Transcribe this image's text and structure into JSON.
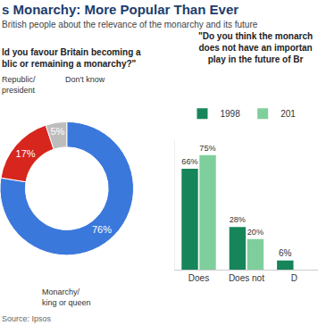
{
  "title": "s Monarchy: More Popular Than Ever",
  "subtitle": "British people about the relevance of the monarchy and its future",
  "source": "Source: Ipsos",
  "chart_data": [
    {
      "type": "pie",
      "title": "ld you favour Britain becoming a\nblic or remaining a monarchy?\"",
      "categories": [
        "Monarchy/ king or queen",
        "Republic/ president",
        "Don't know"
      ],
      "values": [
        76,
        17,
        5
      ],
      "value_labels": [
        "76%",
        "17%",
        "5%"
      ],
      "colors": [
        "#3b78dc",
        "#d7261e",
        "#bdbdbd"
      ],
      "data_labels": true
    },
    {
      "type": "bar",
      "title": "\"Do you think the monarch\ndoes not have an importan\nplay in the future of Br",
      "categories": [
        "Does",
        "Does not",
        "D"
      ],
      "series": [
        {
          "name": "1998",
          "color": "#17855a",
          "values": [
            66,
            28,
            6
          ],
          "value_labels": [
            "66%",
            "28%",
            "6%"
          ]
        },
        {
          "name": "201",
          "color": "#7fcf9c",
          "values": [
            75,
            20,
            null
          ],
          "value_labels": [
            "75%",
            "20%",
            null
          ]
        }
      ],
      "ylim": [
        0,
        85
      ],
      "tick_labels": "x",
      "data_labels": true,
      "legend": "top"
    }
  ]
}
